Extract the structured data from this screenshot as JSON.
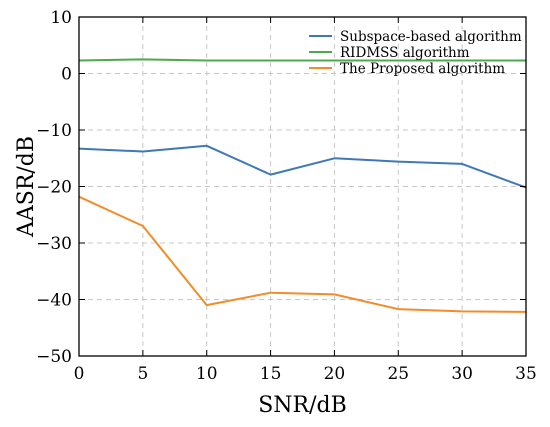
{
  "chart_data": {
    "type": "line",
    "x": [
      0,
      5,
      10,
      15,
      20,
      25,
      30,
      35
    ],
    "xlabel": "SNR/dB",
    "ylabel": "AASR/dB",
    "xlim": [
      0,
      35
    ],
    "ylim": [
      -50,
      10
    ],
    "xticks": [
      "0",
      "5",
      "10",
      "15",
      "20",
      "25",
      "30",
      "35"
    ],
    "yticks": [
      "10",
      "0",
      "−10",
      "−20",
      "−30",
      "−40",
      "−50"
    ],
    "grid": true,
    "legend": "top-right",
    "series": [
      {
        "name": "Subspace-based algorithm",
        "color": "#3f78b4",
        "values": [
          -13.3,
          -13.8,
          -12.8,
          -17.9,
          -15.0,
          -15.6,
          -16.0,
          -20.2
        ]
      },
      {
        "name": "RIDMSS algorithm",
        "color": "#4ea84e",
        "values": [
          2.3,
          2.5,
          2.3,
          2.3,
          2.3,
          2.3,
          2.3,
          2.3
        ]
      },
      {
        "name": "The Proposed algorithm",
        "color": "#f28c28",
        "values": [
          -21.8,
          -27.0,
          -41.0,
          -38.8,
          -39.1,
          -41.7,
          -42.1,
          -42.2
        ]
      }
    ]
  }
}
